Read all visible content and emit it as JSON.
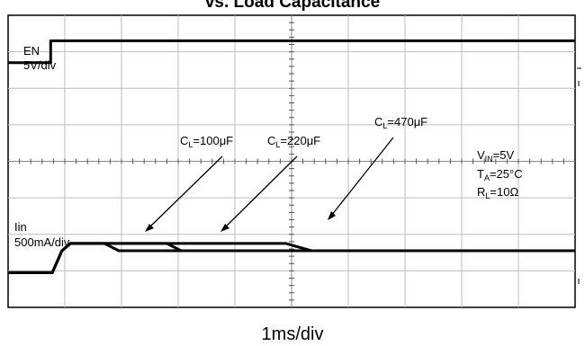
{
  "chart_data": {
    "type": "line",
    "title": "vs. Load Capacitance",
    "xlabel": "1ms/div",
    "grid": true,
    "channel_labels": [
      {
        "name": "EN",
        "scale": "5V/div"
      },
      {
        "name": "Iin",
        "scale": "500mA/div"
      }
    ],
    "conditions": {
      "vin": {
        "base": "V",
        "sub": "IN",
        "rest": "=5V"
      },
      "ta": {
        "base": "T",
        "sub": "A",
        "rest": "=25°C"
      },
      "rl": {
        "base": "R",
        "sub": "L",
        "rest": "=10Ω"
      }
    },
    "annotations": [
      {
        "base": "C",
        "sub": "L",
        "rest": "=100μF"
      },
      {
        "base": "C",
        "sub": "L",
        "rest": "=220μF"
      },
      {
        "base": "C",
        "sub": "L",
        "rest": "=470μF"
      }
    ],
    "x_unit": "div",
    "y_unit": "div",
    "xlim": [
      0,
      10
    ],
    "ylim": [
      0,
      8
    ],
    "series": [
      {
        "color": "#000000",
        "points": [
          [
            0,
            6.7
          ],
          [
            0.75,
            6.7
          ],
          [
            0.75,
            7.3
          ],
          [
            10,
            7.3
          ]
        ]
      },
      {
        "color": "#000000",
        "points": [
          [
            0,
            0.95
          ],
          [
            0.78,
            0.95
          ],
          [
            0.95,
            1.55
          ],
          [
            1.1,
            1.75
          ],
          [
            1.7,
            1.75
          ],
          [
            1.95,
            1.55
          ],
          [
            10,
            1.55
          ]
        ]
      },
      {
        "color": "#000000",
        "points": [
          [
            0,
            0.95
          ],
          [
            0.78,
            0.95
          ],
          [
            0.95,
            1.55
          ],
          [
            1.1,
            1.75
          ],
          [
            2.8,
            1.75
          ],
          [
            3.05,
            1.55
          ],
          [
            10,
            1.55
          ]
        ]
      },
      {
        "color": "#000000",
        "points": [
          [
            0,
            0.95
          ],
          [
            0.78,
            0.95
          ],
          [
            0.95,
            1.55
          ],
          [
            1.1,
            1.75
          ],
          [
            4.9,
            1.75
          ],
          [
            5.35,
            1.55
          ],
          [
            10,
            1.55
          ]
        ]
      }
    ]
  }
}
